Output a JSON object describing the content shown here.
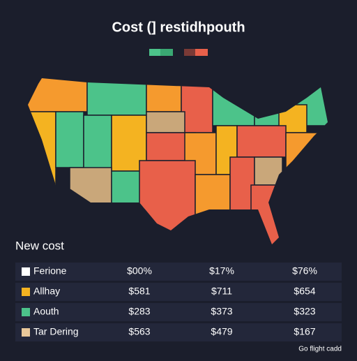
{
  "title": "Cost  (] restidhpouth",
  "table": {
    "heading": "New cost",
    "rows": [
      {
        "label": "Ferione",
        "color": "#ffffff",
        "cells": [
          "$00%",
          "$17%",
          "$76%"
        ]
      },
      {
        "label": "Allhay",
        "color": "#f4b321",
        "cells": [
          "$581",
          "$711",
          "$654"
        ]
      },
      {
        "label": "Aouth",
        "color": "#4cc38a",
        "cells": [
          "$283",
          "$373",
          "$323"
        ]
      },
      {
        "label": "Tar Dering",
        "color": "#e9c89a",
        "cells": [
          "$563",
          "$479",
          "$167"
        ]
      }
    ]
  },
  "footer": "Go flight cadd"
}
